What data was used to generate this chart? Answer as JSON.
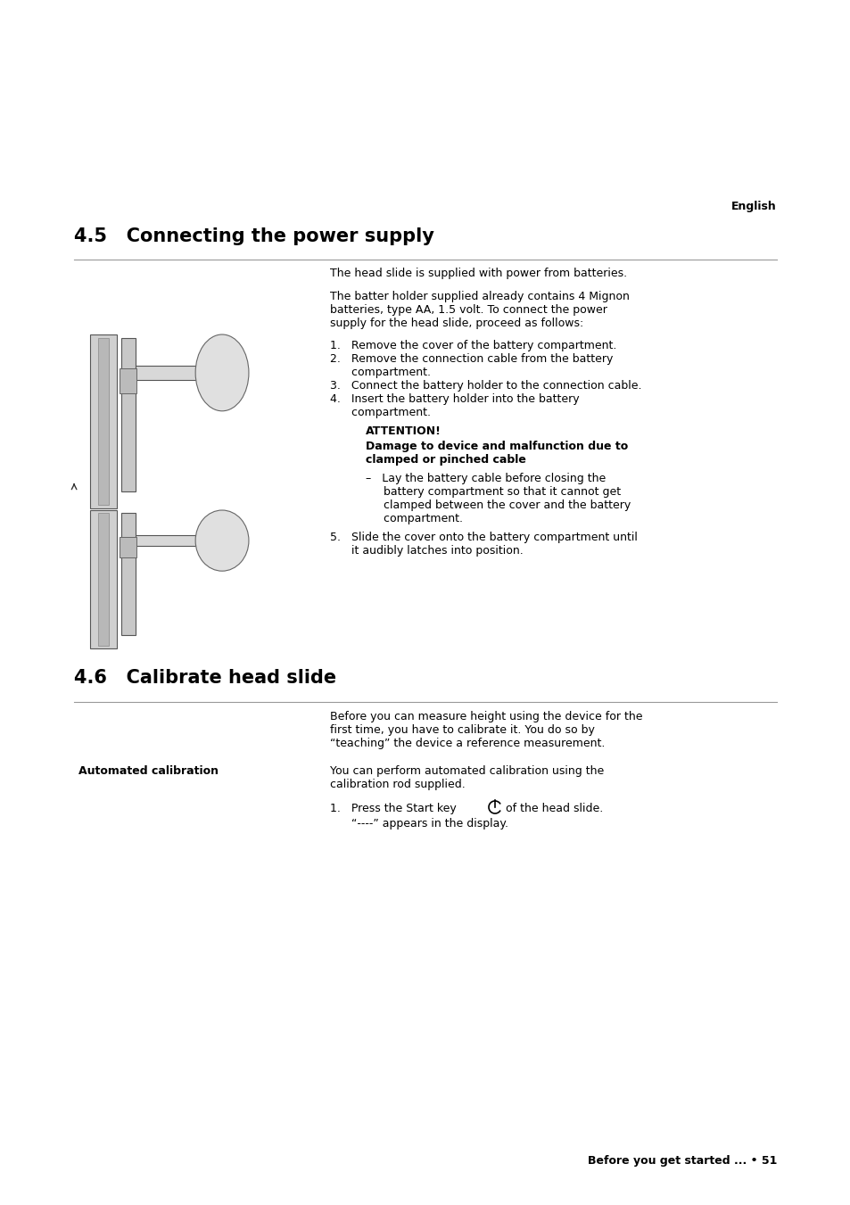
{
  "bg_color": "#ffffff",
  "page_width": 9.54,
  "page_height": 13.51,
  "text_color": "#000000",
  "divider_color": "#999999",
  "header_label": "English",
  "section1_number": "4.5",
  "section1_title": "Connecting the power supply",
  "para1": "The head slide is supplied with power from batteries.",
  "para2_line1": "The batter holder supplied already contains 4 Mignon",
  "para2_line2": "batteries, type AA, 1.5 volt. To connect the power",
  "para2_line3": "supply for the head slide, proceed as follows:",
  "step1": "1.   Remove the cover of the battery compartment.",
  "step2a": "2.   Remove the connection cable from the battery",
  "step2b": "      compartment.",
  "step3": "3.   Connect the battery holder to the connection cable.",
  "step4a": "4.   Insert the battery holder into the battery",
  "step4b": "      compartment.",
  "attention_title": "ATTENTION!",
  "attention_sub1": "Damage to device and malfunction due to",
  "attention_sub2": "clamped or pinched cable",
  "bullet1a": "–   Lay the battery cable before closing the",
  "bullet1b": "     battery compartment so that it cannot get",
  "bullet1c": "     clamped between the cover and the battery",
  "bullet1d": "     compartment.",
  "step5a": "5.   Slide the cover onto the battery compartment until",
  "step5b": "      it audibly latches into position.",
  "section2_number": "4.6",
  "section2_title": "Calibrate head slide",
  "para3a": "Before you can measure height using the device for the",
  "para3b": "first time, you have to calibrate it. You do so by",
  "para3c": "“teaching” the device a reference measurement.",
  "auto_cal_label": "Automated calibration",
  "auto_cal_a": "You can perform automated calibration using the",
  "auto_cal_b": "calibration rod supplied.",
  "step6_pre": "1.   Press the Start key",
  "step6_post": "of the head slide.",
  "step7": "      “----” appears in the display.",
  "footer_text": "Before you get started ... • 51",
  "font_size_body": 9.0,
  "font_size_section": 15.0,
  "font_size_attention": 9.0
}
